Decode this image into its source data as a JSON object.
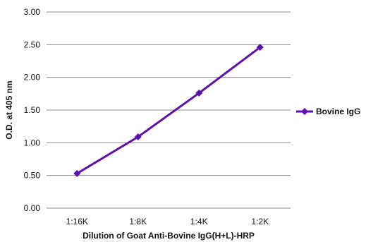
{
  "chart_data": {
    "type": "line",
    "categories": [
      "1:16K",
      "1:8K",
      "1:4K",
      "1:2K"
    ],
    "series": [
      {
        "name": "Bovine IgG",
        "values": [
          0.53,
          1.09,
          1.76,
          2.46
        ],
        "color": "#5b0fb0",
        "marker": "diamond"
      }
    ],
    "ylabel": "O.D. at 405 nm",
    "xlabel": "Dilution of Goat Anti-Bovine IgG(H+L)-HRP",
    "ylim": [
      0,
      3
    ],
    "yticks": [
      "0.00",
      "0.50",
      "1.00",
      "1.50",
      "2.00",
      "2.50",
      "3.00"
    ],
    "grid": true,
    "legend_position": "right"
  }
}
